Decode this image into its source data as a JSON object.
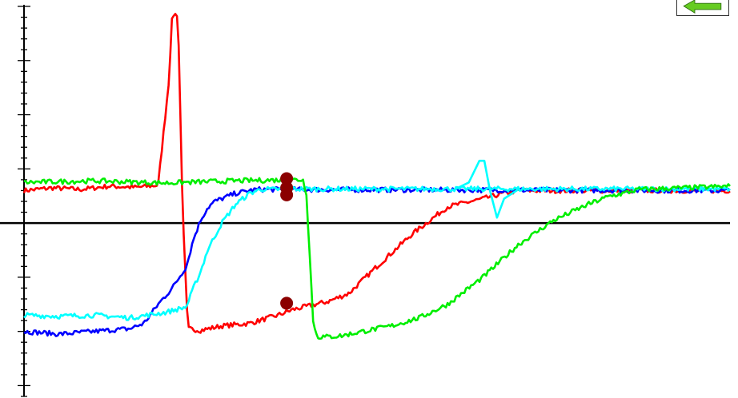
{
  "chart_data": {
    "type": "line",
    "xlim": [
      0,
      100
    ],
    "ylim": [
      -3.2,
      4
    ],
    "grid": false,
    "series": [
      {
        "color": "#ff0000",
        "x": [
          0,
          4,
          8,
          12,
          16,
          19,
          20.5,
          21,
          21.8,
          22.5,
          23.2,
          25,
          28,
          32,
          36,
          38,
          43,
          46,
          50,
          55,
          60,
          65,
          68,
          70,
          100
        ],
        "y": [
          0.6,
          0.65,
          0.62,
          0.68,
          0.66,
          0.7,
          2.6,
          3.85,
          3.85,
          0.1,
          -1.95,
          -1.98,
          -1.9,
          -1.85,
          -1.7,
          -1.6,
          -1.45,
          -1.3,
          -0.8,
          -0.2,
          0.3,
          0.45,
          0.55,
          0.6,
          0.6
        ]
      },
      {
        "color": "#0000ff",
        "x": [
          0,
          5,
          10,
          15,
          17,
          19,
          21,
          23,
          24,
          25,
          26,
          27,
          28,
          30,
          32,
          33,
          100
        ],
        "y": [
          -2.0,
          -2.05,
          -2.0,
          -1.95,
          -1.85,
          -1.5,
          -1.2,
          -0.8,
          -0.3,
          0.05,
          0.28,
          0.4,
          0.45,
          0.55,
          0.6,
          0.62,
          0.6
        ]
      },
      {
        "color": "#00ffff",
        "x": [
          0,
          5,
          10,
          15,
          20,
          23,
          24,
          25,
          26,
          28,
          30,
          32,
          33,
          34,
          35,
          38,
          100
        ],
        "y": [
          -1.7,
          -1.72,
          -1.7,
          -1.75,
          -1.65,
          -1.55,
          -1.2,
          -0.9,
          -0.5,
          0.0,
          0.35,
          0.55,
          0.6,
          0.63,
          0.62,
          0.63,
          0.63
        ]
      },
      {
        "color": "#00ee00",
        "x": [
          0,
          10,
          20,
          30,
          38,
          39.5,
          40,
          41,
          41.6,
          42,
          43,
          45,
          48,
          52,
          56,
          60,
          65,
          70,
          75,
          80,
          83,
          85,
          87,
          100
        ],
        "y": [
          0.75,
          0.78,
          0.74,
          0.78,
          0.8,
          0.8,
          0.55,
          -1.9,
          -2.1,
          -2.1,
          -2.1,
          -2.08,
          -2.0,
          -1.9,
          -1.75,
          -1.5,
          -1.0,
          -0.4,
          0.05,
          0.35,
          0.5,
          0.55,
          0.62,
          0.68
        ]
      }
    ],
    "markers": [
      {
        "x": 37.2,
        "y": 0.82,
        "color": "#8b0000"
      },
      {
        "x": 37.2,
        "y": 0.65,
        "color": "#8b0000"
      },
      {
        "x": 37.2,
        "y": 0.52,
        "color": "#8b0000"
      },
      {
        "x": 37.2,
        "y": -1.48,
        "color": "#8b0000"
      }
    ]
  }
}
